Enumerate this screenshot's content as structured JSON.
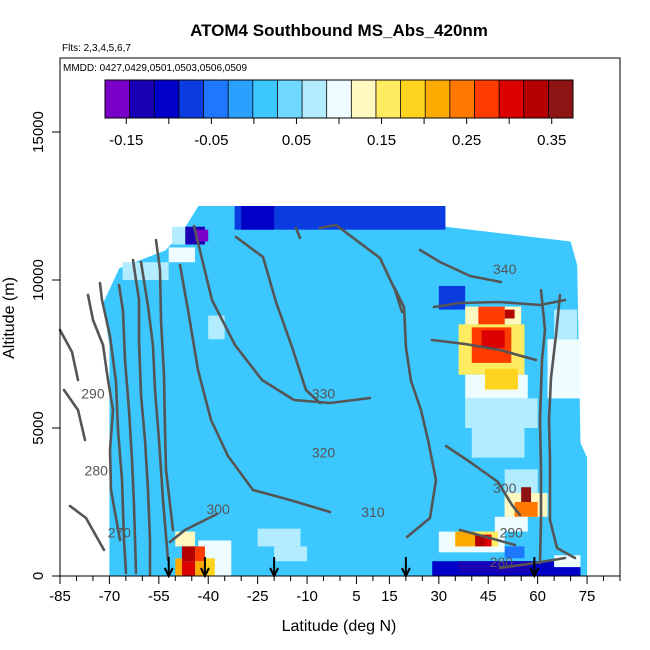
{
  "chart_data": {
    "type": "heatmap",
    "title": "ATOM4 Southbound MS_Abs_420nm",
    "flights_note": "Flts: 2,3,4,5,6,7",
    "dates_note": "MMDD: 0427,0429,0501,0503,0506,0509",
    "xlabel": "Latitude (deg N)",
    "ylabel": "Altitude (m)",
    "xlim": [
      -85,
      85
    ],
    "ylim": [
      0,
      17500
    ],
    "x_ticks": [
      -85,
      -70,
      -55,
      -40,
      -25,
      -10,
      5,
      15,
      30,
      45,
      60,
      75
    ],
    "x_tick_labels": [
      "-85",
      "-70",
      "-55",
      "-40",
      "-25",
      "-10",
      "5",
      "15",
      "30",
      "45",
      "60",
      "75"
    ],
    "y_ticks": [
      0,
      5000,
      10000,
      15000
    ],
    "y_tick_labels": [
      "0",
      "5000",
      "10000",
      "15000"
    ],
    "colorbar": {
      "range": [
        -0.175,
        0.375
      ],
      "ticks": [
        -0.15,
        -0.05,
        0.05,
        0.15,
        0.25,
        0.35
      ],
      "tick_labels": [
        "-0.15",
        "-0.05",
        "0.05",
        "0.15",
        "0.25",
        "0.35"
      ],
      "colors": [
        "#7a00c8",
        "#1a00b4",
        "#0000c8",
        "#0a3ce0",
        "#1e78ff",
        "#2aa0ff",
        "#3cc8ff",
        "#6ed8ff",
        "#b4ecff",
        "#eefcff",
        "#fff8c0",
        "#ffec60",
        "#ffd41e",
        "#ffaa00",
        "#ff7800",
        "#ff3c00",
        "#dc0000",
        "#b40000",
        "#8c1414"
      ]
    },
    "background_value": 0.02,
    "cells": [
      {
        "lat": [
          -32,
          32
        ],
        "alt": [
          11700,
          12500
        ],
        "value": -0.07
      },
      {
        "lat": [
          -30,
          -20
        ],
        "alt": [
          11700,
          12500
        ],
        "value": -0.1
      },
      {
        "lat": [
          -47,
          -41
        ],
        "alt": [
          11200,
          11800
        ],
        "value": -0.12
      },
      {
        "lat": [
          -51,
          -47
        ],
        "alt": [
          11200,
          11800
        ],
        "value": 0.08
      },
      {
        "lat": [
          -44,
          -40
        ],
        "alt": [
          11300,
          11700
        ],
        "value": -0.16
      },
      {
        "lat": [
          -52,
          -44
        ],
        "alt": [
          10600,
          11100
        ],
        "value": 0.1
      },
      {
        "lat": [
          -66,
          -52
        ],
        "alt": [
          10000,
          10600
        ],
        "value": 0.06
      },
      {
        "lat": [
          -40,
          -35
        ],
        "alt": [
          8000,
          8800
        ],
        "value": 0.07
      },
      {
        "lat": [
          -25,
          -12
        ],
        "alt": [
          1000,
          1600
        ],
        "value": 0.06
      },
      {
        "lat": [
          -20,
          -10
        ],
        "alt": [
          500,
          1000
        ],
        "value": 0.08
      },
      {
        "lat": [
          -43,
          -33
        ],
        "alt": [
          0,
          1200
        ],
        "value": 0.1
      },
      {
        "lat": [
          -50,
          -44
        ],
        "alt": [
          1000,
          1500
        ],
        "value": 0.13
      },
      {
        "lat": [
          -48,
          -44
        ],
        "alt": [
          500,
          1000
        ],
        "value": 0.33
      },
      {
        "lat": [
          -48,
          -44
        ],
        "alt": [
          0,
          500
        ],
        "value": 0.3
      },
      {
        "lat": [
          -44,
          -41
        ],
        "alt": [
          500,
          1000
        ],
        "value": 0.27
      },
      {
        "lat": [
          -44,
          -41
        ],
        "alt": [
          0,
          500
        ],
        "value": 0.21
      },
      {
        "lat": [
          -41,
          -38
        ],
        "alt": [
          0,
          600
        ],
        "value": 0.18
      },
      {
        "lat": [
          -50,
          -48
        ],
        "alt": [
          0,
          600
        ],
        "value": 0.23
      },
      {
        "lat": [
          30,
          38
        ],
        "alt": [
          9000,
          9800
        ],
        "value": -0.06
      },
      {
        "lat": [
          38,
          55
        ],
        "alt": [
          8500,
          9100
        ],
        "value": 0.12
      },
      {
        "lat": [
          42,
          50
        ],
        "alt": [
          8500,
          9100
        ],
        "value": 0.28
      },
      {
        "lat": [
          50,
          53
        ],
        "alt": [
          8700,
          9000
        ],
        "value": 0.33
      },
      {
        "lat": [
          36,
          56
        ],
        "alt": [
          6800,
          8500
        ],
        "value": 0.15
      },
      {
        "lat": [
          40,
          52
        ],
        "alt": [
          7200,
          8400
        ],
        "value": 0.26
      },
      {
        "lat": [
          43,
          50
        ],
        "alt": [
          7700,
          8300
        ],
        "value": 0.29
      },
      {
        "lat": [
          38,
          57
        ],
        "alt": [
          6000,
          6800
        ],
        "value": 0.1
      },
      {
        "lat": [
          44,
          54
        ],
        "alt": [
          6300,
          7000
        ],
        "value": 0.18
      },
      {
        "lat": [
          38,
          60
        ],
        "alt": [
          5000,
          6000
        ],
        "value": 0.08
      },
      {
        "lat": [
          40,
          56
        ],
        "alt": [
          4000,
          5000
        ],
        "value": 0.06
      },
      {
        "lat": [
          50,
          60
        ],
        "alt": [
          2000,
          3600
        ],
        "value": 0.06
      },
      {
        "lat": [
          50,
          63
        ],
        "alt": [
          2000,
          2800
        ],
        "value": 0.13
      },
      {
        "lat": [
          53,
          60
        ],
        "alt": [
          2000,
          2500
        ],
        "value": 0.25
      },
      {
        "lat": [
          55,
          58
        ],
        "alt": [
          2500,
          3000
        ],
        "value": 0.35
      },
      {
        "lat": [
          47,
          57
        ],
        "alt": [
          1500,
          2000
        ],
        "value": 0.09
      },
      {
        "lat": [
          30,
          50
        ],
        "alt": [
          800,
          1500
        ],
        "value": 0.09
      },
      {
        "lat": [
          35,
          48
        ],
        "alt": [
          1000,
          1500
        ],
        "value": 0.16
      },
      {
        "lat": [
          41,
          44
        ],
        "alt": [
          1000,
          1400
        ],
        "value": 0.33
      },
      {
        "lat": [
          44,
          46
        ],
        "alt": [
          1000,
          1400
        ],
        "value": 0.29
      },
      {
        "lat": [
          35,
          41
        ],
        "alt": [
          1000,
          1500
        ],
        "value": 0.21
      },
      {
        "lat": [
          28,
          73
        ],
        "alt": [
          0,
          500
        ],
        "value": -0.09
      },
      {
        "lat": [
          36,
          58
        ],
        "alt": [
          100,
          500
        ],
        "value": -0.12
      },
      {
        "lat": [
          50,
          56
        ],
        "alt": [
          600,
          1000
        ],
        "value": -0.05
      },
      {
        "lat": [
          65,
          73
        ],
        "alt": [
          300,
          700
        ],
        "value": 0.11
      },
      {
        "lat": [
          63,
          73
        ],
        "alt": [
          6000,
          8000
        ],
        "value": 0.09
      },
      {
        "lat": [
          65,
          72
        ],
        "alt": [
          8000,
          9000
        ],
        "value": 0.06
      }
    ],
    "profile_edges": [
      {
        "lat": -70,
        "alt_top": 7800
      },
      {
        "lat": -72,
        "alt_top": 9200
      },
      {
        "lat": -67,
        "alt_top": 10400
      },
      {
        "lat": -53,
        "alt_top": 11000
      },
      {
        "lat": -48,
        "alt_top": 11600
      },
      {
        "lat": -43,
        "alt_top": 12500
      },
      {
        "lat": 32,
        "alt_top": 12500
      },
      {
        "lat": 32,
        "alt_top": 11800
      },
      {
        "lat": 70,
        "alt_top": 11300
      },
      {
        "lat": 72,
        "alt_top": 10500
      },
      {
        "lat": 73,
        "alt_top": 4500
      },
      {
        "lat": 75,
        "alt_top": 4000
      },
      {
        "lat": 75,
        "alt_top": 0
      }
    ],
    "arrows_lat": [
      -52,
      -41,
      -20,
      20,
      59
    ],
    "contour_labels": [
      {
        "text": "340",
        "lat": 50,
        "alt": 10200
      },
      {
        "text": "330",
        "lat": -5,
        "alt": 6000
      },
      {
        "text": "320",
        "lat": -5,
        "alt": 4000
      },
      {
        "text": "310",
        "lat": 10,
        "alt": 2000
      },
      {
        "text": "300",
        "lat": -37,
        "alt": 2100
      },
      {
        "text": "300",
        "lat": 50,
        "alt": 2800
      },
      {
        "text": "290",
        "lat": -75,
        "alt": 6000
      },
      {
        "text": "290",
        "lat": 52,
        "alt": 1300
      },
      {
        "text": "280",
        "lat": -74,
        "alt": 3400
      },
      {
        "text": "280",
        "lat": 49,
        "alt": 300
      },
      {
        "text": "270",
        "lat": -67,
        "alt": 1300
      }
    ]
  }
}
